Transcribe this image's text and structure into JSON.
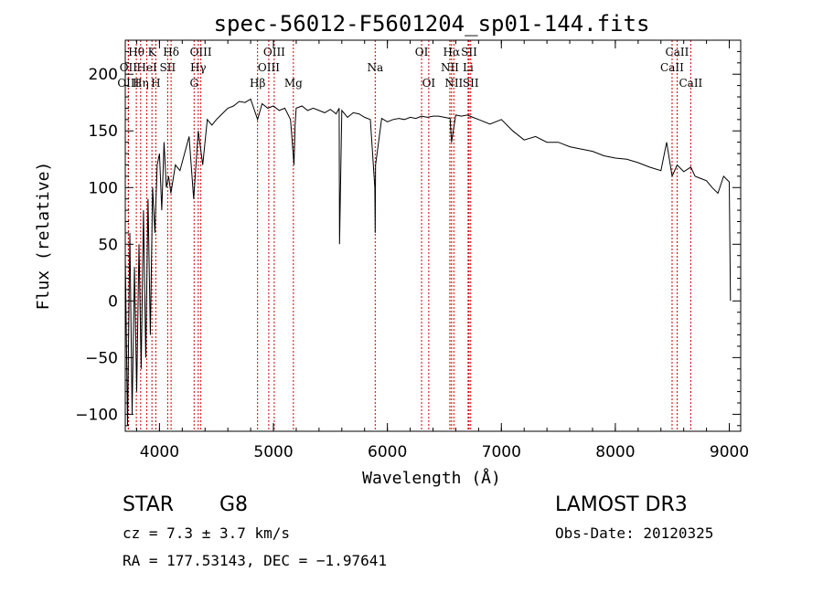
{
  "chart_data": {
    "type": "line",
    "title": "spec-56012-F5601204_sp01-144.fits",
    "xlabel": "Wavelength (Å)",
    "ylabel": "Flux (relative)",
    "xlim": [
      3700,
      9100
    ],
    "ylim": [
      -115,
      230
    ],
    "xticks": [
      4000,
      5000,
      6000,
      7000,
      8000,
      9000
    ],
    "yticks": [
      -100,
      -50,
      0,
      50,
      100,
      150,
      200
    ],
    "spectrum": {
      "x": [
        3700,
        3720,
        3740,
        3760,
        3780,
        3800,
        3820,
        3840,
        3860,
        3880,
        3900,
        3920,
        3940,
        3960,
        3980,
        4000,
        4020,
        4040,
        4060,
        4080,
        4100,
        4140,
        4180,
        4220,
        4260,
        4300,
        4340,
        4380,
        4420,
        4460,
        4500,
        4550,
        4600,
        4650,
        4700,
        4750,
        4800,
        4861,
        4900,
        4950,
        5000,
        5050,
        5100,
        5150,
        5180,
        5190,
        5200,
        5250,
        5300,
        5350,
        5400,
        5450,
        5500,
        5550,
        5577,
        5580,
        5600,
        5650,
        5700,
        5750,
        5800,
        5850,
        5890,
        5893,
        5896,
        5950,
        6000,
        6050,
        6100,
        6150,
        6200,
        6250,
        6300,
        6350,
        6400,
        6450,
        6500,
        6550,
        6563,
        6600,
        6650,
        6700,
        6750,
        6800,
        6900,
        7000,
        7100,
        7200,
        7300,
        7400,
        7500,
        7600,
        7700,
        7800,
        7900,
        8000,
        8100,
        8200,
        8300,
        8400,
        8450,
        8498,
        8542,
        8600,
        8662,
        8700,
        8750,
        8800,
        8850,
        8900,
        8950,
        9000,
        9010
      ],
      "y": [
        40,
        -110,
        60,
        -100,
        30,
        -80,
        50,
        -60,
        80,
        -50,
        90,
        -30,
        100,
        60,
        120,
        130,
        80,
        140,
        100,
        110,
        95,
        120,
        115,
        130,
        145,
        90,
        150,
        120,
        160,
        155,
        160,
        165,
        170,
        172,
        176,
        175,
        178,
        160,
        174,
        170,
        172,
        168,
        170,
        160,
        120,
        155,
        170,
        172,
        168,
        170,
        168,
        166,
        169,
        165,
        170,
        50,
        168,
        162,
        166,
        165,
        162,
        160,
        100,
        60,
        120,
        161,
        158,
        160,
        161,
        160,
        162,
        161,
        163,
        162,
        163,
        163,
        162,
        161,
        140,
        164,
        163,
        164,
        162,
        160,
        156,
        160,
        150,
        142,
        145,
        140,
        140,
        136,
        134,
        132,
        128,
        126,
        125,
        122,
        118,
        115,
        140,
        110,
        120,
        114,
        118,
        110,
        108,
        106,
        100,
        95,
        110,
        105,
        0
      ],
      "color": "#000000"
    },
    "lines": [
      {
        "label": "Hθ",
        "x": 3797,
        "row": 0
      },
      {
        "label": "K",
        "x": 3934,
        "row": 0
      },
      {
        "label": "Hδ",
        "x": 4102,
        "row": 0
      },
      {
        "label": "OIII",
        "x": 4363,
        "row": 0
      },
      {
        "label": "OIII",
        "x": 5007,
        "row": 0
      },
      {
        "label": "OI",
        "x": 6300,
        "row": 0
      },
      {
        "label": "Hα",
        "x": 6563,
        "row": 0
      },
      {
        "label": "SII",
        "x": 6717,
        "row": 0
      },
      {
        "label": "CaII",
        "x": 8542,
        "row": 0
      },
      {
        "label": "OII",
        "x": 3727,
        "row": 1
      },
      {
        "label": "HeI",
        "x": 3889,
        "row": 1
      },
      {
        "label": "SII",
        "x": 4072,
        "row": 1
      },
      {
        "label": "Hγ",
        "x": 4340,
        "row": 1
      },
      {
        "label": "OIII",
        "x": 4959,
        "row": 1
      },
      {
        "label": "Na",
        "x": 5893,
        "row": 1
      },
      {
        "label": "NII",
        "x": 6548,
        "row": 1
      },
      {
        "label": "Li",
        "x": 6708,
        "row": 1
      },
      {
        "label": "CaII",
        "x": 8498,
        "row": 1
      },
      {
        "label": "OIII",
        "x": 3727,
        "row": 2
      },
      {
        "label": "Hη",
        "x": 3835,
        "row": 2
      },
      {
        "label": "H",
        "x": 3968,
        "row": 2
      },
      {
        "label": "G",
        "x": 4304,
        "row": 2
      },
      {
        "label": "Hβ",
        "x": 4861,
        "row": 2
      },
      {
        "label": "Mg",
        "x": 5175,
        "row": 2
      },
      {
        "label": "OI",
        "x": 6363,
        "row": 2
      },
      {
        "label": "NII",
        "x": 6583,
        "row": 2
      },
      {
        "label": "SII",
        "x": 6731,
        "row": 2
      },
      {
        "label": "CaII",
        "x": 8662,
        "row": 2
      }
    ],
    "line_color": "#cc0000"
  },
  "info": {
    "object_class": "STAR",
    "subclass": "G8",
    "survey": "LAMOST DR3",
    "cz": "cz = 7.3 ± 3.7 km/s",
    "obs_date": "Obs-Date: 20120325",
    "coords": "RA = 177.53143, DEC =  −1.97641"
  }
}
